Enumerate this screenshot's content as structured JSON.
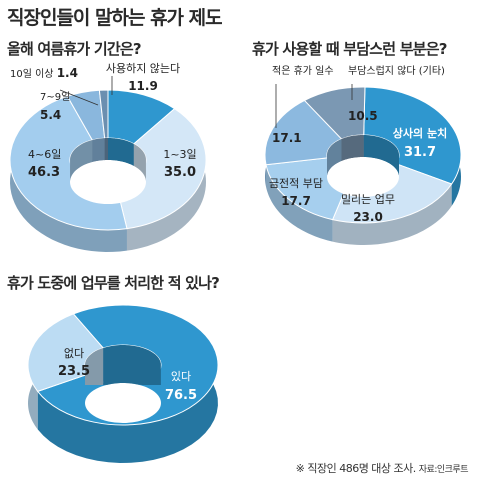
{
  "page": {
    "title": "직장인들이 말하는 휴가 제도",
    "footer_note": "※ 직장인 486명 대상 조사.",
    "footer_source": "자료:인크루트"
  },
  "colors": {
    "light": "#cfe4f6",
    "light2": "#b3d4ee",
    "mid": "#8ec1e5",
    "dark": "#5aa7d8",
    "deep": "#2f97cf",
    "gray": "#7b98b3"
  },
  "chart_data": [
    {
      "type": "pie",
      "title": "올해 여름휴가 기간은?",
      "unit": "%",
      "slices": [
        {
          "label": "사용하지 않는다",
          "value": 11.9,
          "color": "#2f97cf",
          "highlight": true
        },
        {
          "label": "1~3일",
          "value": 35.0,
          "color": "#d4e7f7"
        },
        {
          "label": "4~6일",
          "value": 46.3,
          "color": "#a3cdee"
        },
        {
          "label": "7~9일",
          "value": 5.4,
          "color": "#8ab7dd"
        },
        {
          "label": "10일 이상",
          "value": 1.4,
          "color": "#6b8fb0"
        }
      ]
    },
    {
      "type": "pie",
      "title": "휴가 사용할 때 부담스런 부분은?",
      "unit": "%",
      "slices": [
        {
          "label": "상사의 눈치",
          "value": 31.7,
          "color": "#2f97cf",
          "highlight": true
        },
        {
          "label": "밀리는 업무",
          "value": 23.0,
          "color": "#cfe4f6"
        },
        {
          "label": "금전적 부담",
          "value": 17.7,
          "color": "#a6cfee"
        },
        {
          "label": "적은 휴가 일수",
          "value": 17.1,
          "color": "#8cb9df"
        },
        {
          "label": "부담스럽지 않다 (기타)",
          "value": 10.5,
          "color": "#7b98b3"
        }
      ]
    },
    {
      "type": "pie",
      "title": "휴가 도중에 업무를 처리한 적 있나?",
      "unit": "%",
      "slices": [
        {
          "label": "있다",
          "value": 76.5,
          "color": "#2f97cf",
          "highlight": true
        },
        {
          "label": "없다",
          "value": 23.5,
          "color": "#bcdcf3"
        }
      ]
    }
  ]
}
